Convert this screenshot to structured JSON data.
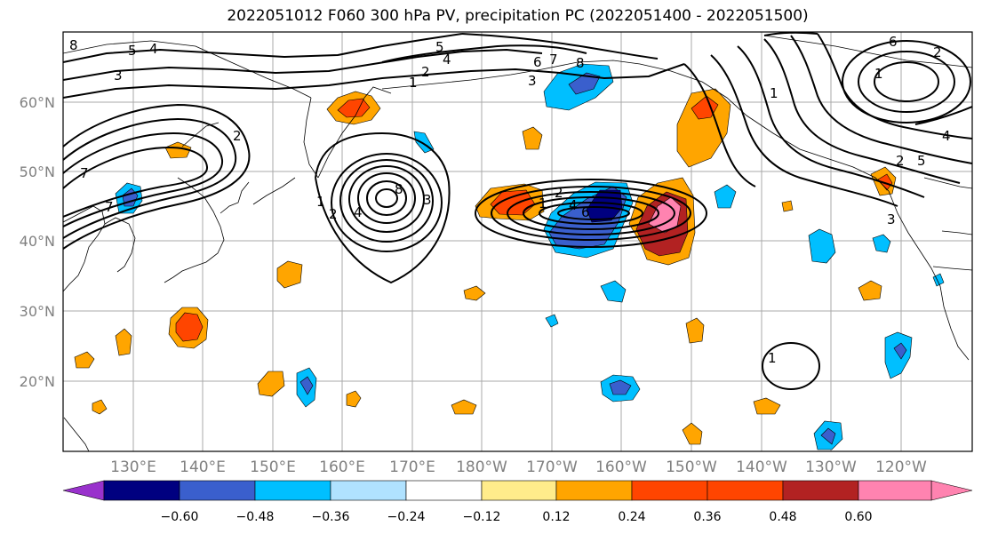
{
  "title": "2022051012 F060 300 hPa PV, precipitation PC (2022051400 - 2022051500)",
  "map": {
    "lat_labels": [
      "60°N",
      "50°N",
      "40°N",
      "30°N",
      "20°N"
    ],
    "lon_labels": [
      "130°E",
      "140°E",
      "150°E",
      "160°E",
      "170°E",
      "180°W",
      "170°W",
      "160°W",
      "150°W",
      "140°W",
      "130°W",
      "120°W"
    ],
    "contour_labels": [
      "8",
      "7",
      "5",
      "4",
      "3",
      "5",
      "4",
      "2",
      "1",
      "3",
      "6",
      "7",
      "8",
      "2",
      "7",
      "1",
      "2",
      "4",
      "8",
      "3",
      "2",
      "1",
      "6",
      "4",
      "2",
      "1",
      "6",
      "3",
      "1",
      "4",
      "5",
      "2",
      "1"
    ]
  },
  "colorbar": {
    "ticks": [
      "−0.60",
      "−0.48",
      "−0.36",
      "−0.24",
      "−0.12",
      "0.12",
      "0.24",
      "0.36",
      "0.48",
      "0.60"
    ],
    "colors": [
      "#9932cc",
      "#000080",
      "#3a5fcd",
      "#00bfff",
      "#b0e2ff",
      "#ffffff",
      "#ffec8b",
      "#ffa500",
      "#ff4500",
      "#b22222",
      "#ff83b0"
    ]
  }
}
